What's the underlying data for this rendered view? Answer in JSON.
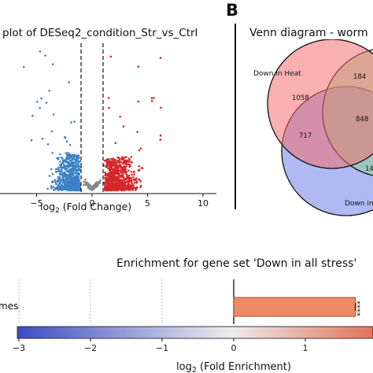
{
  "panel_label": "B",
  "chart_data": [
    {
      "type": "scatter",
      "subtype": "volcano",
      "title": "plot of DESeq2_condition_Str_vs_Ctrl",
      "xlabel": "log",
      "xlabel_sub": "2",
      "xlabel_rest": " (Fold Change)",
      "xlim": [
        -8.5,
        11.5
      ],
      "xticks": [
        -5,
        0,
        5,
        10
      ],
      "xtick_labels": [
        "−5",
        "0",
        "5",
        "10"
      ],
      "threshold_lines": [
        -1,
        1
      ],
      "colors": {
        "down": "#3b82c4",
        "up": "#d62728",
        "ns": "#888888"
      }
    },
    {
      "type": "venn",
      "title": "Venn diagram - worm",
      "sets": [
        {
          "name": "Down in Heat",
          "color": "#f26f6f"
        },
        {
          "name": "",
          "color": "#8fd18f"
        },
        {
          "name": "Down in",
          "color": "#6f7fe8"
        }
      ],
      "region_values": [
        "1058",
        "184",
        "848",
        "717",
        "14"
      ]
    },
    {
      "type": "bar",
      "title": "Enrichment for gene set 'Down in all stress'",
      "categories": [
        "mes"
      ],
      "values": [
        1.7
      ],
      "significance": "****",
      "xlim": [
        -3,
        2
      ],
      "xticks": [
        -3,
        -2,
        -1,
        0,
        1
      ],
      "xtick_labels": [
        "−3",
        "−2",
        "−1",
        "0",
        "1"
      ],
      "xlabel": "log",
      "xlabel_sub": "2",
      "xlabel_rest": " (Fold Enrichment)",
      "colorbar": {
        "low": "#3c4cc4",
        "mid": "#ededed",
        "high": "#e4745a"
      },
      "bar_color": "#ef8a66"
    }
  ]
}
